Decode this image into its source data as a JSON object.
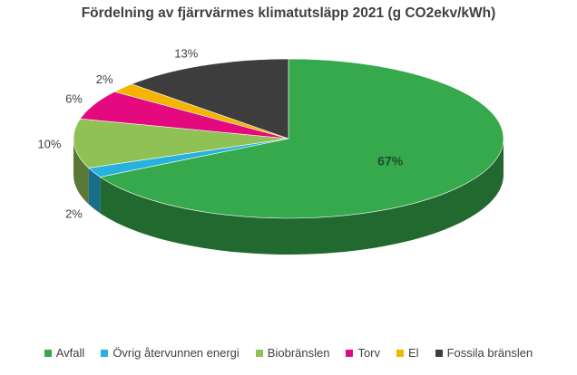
{
  "chart_data": {
    "type": "pie",
    "title": "Fördelning av fjärrvärmes klimatutsläpp 2021 (g CO2ekv/kWh)",
    "categories": [
      "Avfall",
      "Övrig återvunnen energi",
      "Biobränslen",
      "Torv",
      "El",
      "Fossila bränslen"
    ],
    "values": [
      67,
      2,
      10,
      6,
      2,
      13
    ],
    "labels": [
      "67%",
      "2%",
      "10%",
      "6%",
      "2%",
      "13%"
    ],
    "colors": [
      "#35a94c",
      "#27b2de",
      "#8fc155",
      "#e4097e",
      "#f4b400",
      "#3d3d3d"
    ],
    "legend_position": "bottom",
    "style": "3d-pie"
  }
}
